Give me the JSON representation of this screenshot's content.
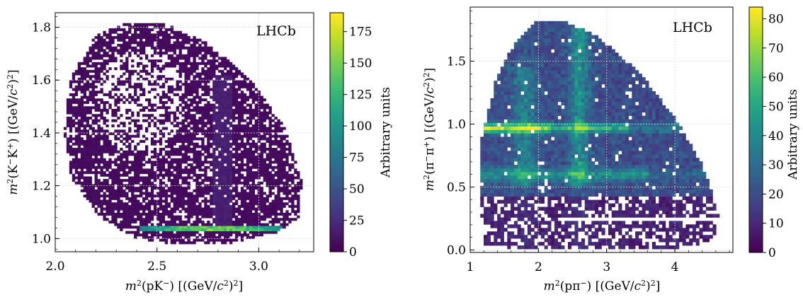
{
  "chart_data": [
    {
      "type": "heatmap",
      "brand": "LHCb",
      "xlabel": {
        "pre": "m",
        "sup": "2",
        "mid": "(pK",
        "minus": "−",
        "post": ") [(GeV/",
        "c": "c",
        "c2": "2",
        "end": ")",
        "end2": "2",
        "close": "]"
      },
      "ylabel": {
        "pre": "m",
        "sup": "2",
        "mid": "(K",
        "minus": "−",
        "mid2": "K",
        "plus": "+",
        "post": ") [(GeV/",
        "c": "c",
        "c2": "2",
        "end": ")",
        "end2": "2",
        "close": "]"
      },
      "xlim": [
        2.0,
        3.27
      ],
      "ylim": [
        0.95,
        1.855
      ],
      "xticks": [
        "2.0",
        "2.5",
        "3.0"
      ],
      "xtick_values": [
        2.0,
        2.5,
        3.0
      ],
      "yticks": [
        "1.0",
        "1.2",
        "1.4",
        "1.6",
        "1.8"
      ],
      "ytick_values": [
        1.0,
        1.2,
        1.4,
        1.6,
        1.8
      ],
      "grid": true,
      "colorbar": {
        "label": "Arbitrary units",
        "range": [
          0,
          190
        ],
        "ticks": [
          "0",
          "25",
          "50",
          "75",
          "100",
          "125",
          "150",
          "175"
        ],
        "tick_values": [
          0,
          25,
          50,
          75,
          100,
          125,
          150,
          175
        ]
      },
      "region": {
        "shape": "ellipse-boundary",
        "boundary": [
          [
            2.36,
            1.82
          ],
          [
            2.2,
            1.77
          ],
          [
            2.08,
            1.62
          ],
          [
            2.04,
            1.42
          ],
          [
            2.08,
            1.23
          ],
          [
            2.22,
            1.08
          ],
          [
            2.4,
            1.0
          ],
          [
            2.62,
            0.975
          ],
          [
            2.85,
            0.98
          ],
          [
            3.08,
            1.02
          ],
          [
            3.2,
            1.08
          ],
          [
            3.21,
            1.22
          ],
          [
            3.13,
            1.42
          ],
          [
            2.96,
            1.6
          ],
          [
            2.75,
            1.74
          ],
          [
            2.55,
            1.81
          ]
        ]
      },
      "features": [
        {
          "kind": "horizontal-band",
          "y": 1.035,
          "x_range": [
            2.42,
            3.12
          ],
          "peak": 150
        },
        {
          "kind": "vertical-band",
          "x": 2.82,
          "y_range": [
            1.05,
            1.62
          ],
          "peak": 25
        },
        {
          "kind": "sparse-region",
          "center": [
            2.42,
            1.52
          ],
          "peak": 6
        }
      ]
    },
    {
      "type": "heatmap",
      "brand": "LHCb",
      "xlabel": {
        "pre": "m",
        "sup": "2",
        "mid": "(pπ",
        "minus": "−",
        "post": ") [(GeV/",
        "c": "c",
        "c2": "2",
        "end": ")",
        "end2": "2",
        "close": "]"
      },
      "ylabel": {
        "pre": "m",
        "sup": "2",
        "mid": "(π",
        "minus": "−",
        "mid2": "π",
        "plus": "+",
        "post": ") [(GeV/",
        "c": "c",
        "c2": "2",
        "end": ")",
        "end2": "2",
        "close": "]"
      },
      "xlim": [
        1.0,
        4.85
      ],
      "ylim": [
        -0.02,
        1.93
      ],
      "xticks": [
        "1",
        "2",
        "3",
        "4"
      ],
      "xtick_values": [
        1,
        2,
        3,
        4
      ],
      "yticks": [
        "0.0",
        "0.5",
        "1.0",
        "1.5"
      ],
      "ytick_values": [
        0.0,
        0.5,
        1.0,
        1.5
      ],
      "grid": true,
      "colorbar": {
        "label": "Arbitrary units",
        "range": [
          0,
          84
        ],
        "ticks": [
          "0",
          "10",
          "20",
          "30",
          "40",
          "50",
          "60",
          "70",
          "80"
        ],
        "tick_values": [
          0,
          10,
          20,
          30,
          40,
          50,
          60,
          70,
          80
        ]
      },
      "region": {
        "shape": "dalitz-boundary",
        "boundary": [
          [
            1.2,
            0.05
          ],
          [
            1.13,
            0.4
          ],
          [
            1.17,
            0.9
          ],
          [
            1.37,
            1.35
          ],
          [
            1.66,
            1.65
          ],
          [
            1.98,
            1.82
          ],
          [
            2.4,
            1.82
          ],
          [
            2.9,
            1.68
          ],
          [
            3.5,
            1.4
          ],
          [
            4.0,
            1.05
          ],
          [
            4.4,
            0.68
          ],
          [
            4.65,
            0.28
          ],
          [
            4.55,
            0.07
          ],
          [
            4.05,
            0.02
          ],
          [
            3.2,
            0.01
          ],
          [
            2.3,
            0.02
          ],
          [
            1.55,
            0.02
          ]
        ]
      },
      "features": [
        {
          "kind": "horizontal-band",
          "y": 0.97,
          "x_range": [
            1.2,
            3.3
          ],
          "peak": 78
        },
        {
          "kind": "horizontal-band",
          "y": 0.6,
          "x_range": [
            1.2,
            3.6
          ],
          "peak": 45
        },
        {
          "kind": "vertical-band",
          "x": 2.6,
          "y_range": [
            0.6,
            1.8
          ],
          "peak": 45
        },
        {
          "kind": "vertical-band",
          "x": 1.8,
          "y_range": [
            0.6,
            1.4
          ],
          "peak": 45
        },
        {
          "kind": "sparse-region",
          "y_range": [
            0.0,
            0.4
          ],
          "peak": 12
        },
        {
          "kind": "gap-line",
          "y": 0.25,
          "x_range": [
            2.3,
            4.6
          ]
        }
      ]
    }
  ]
}
